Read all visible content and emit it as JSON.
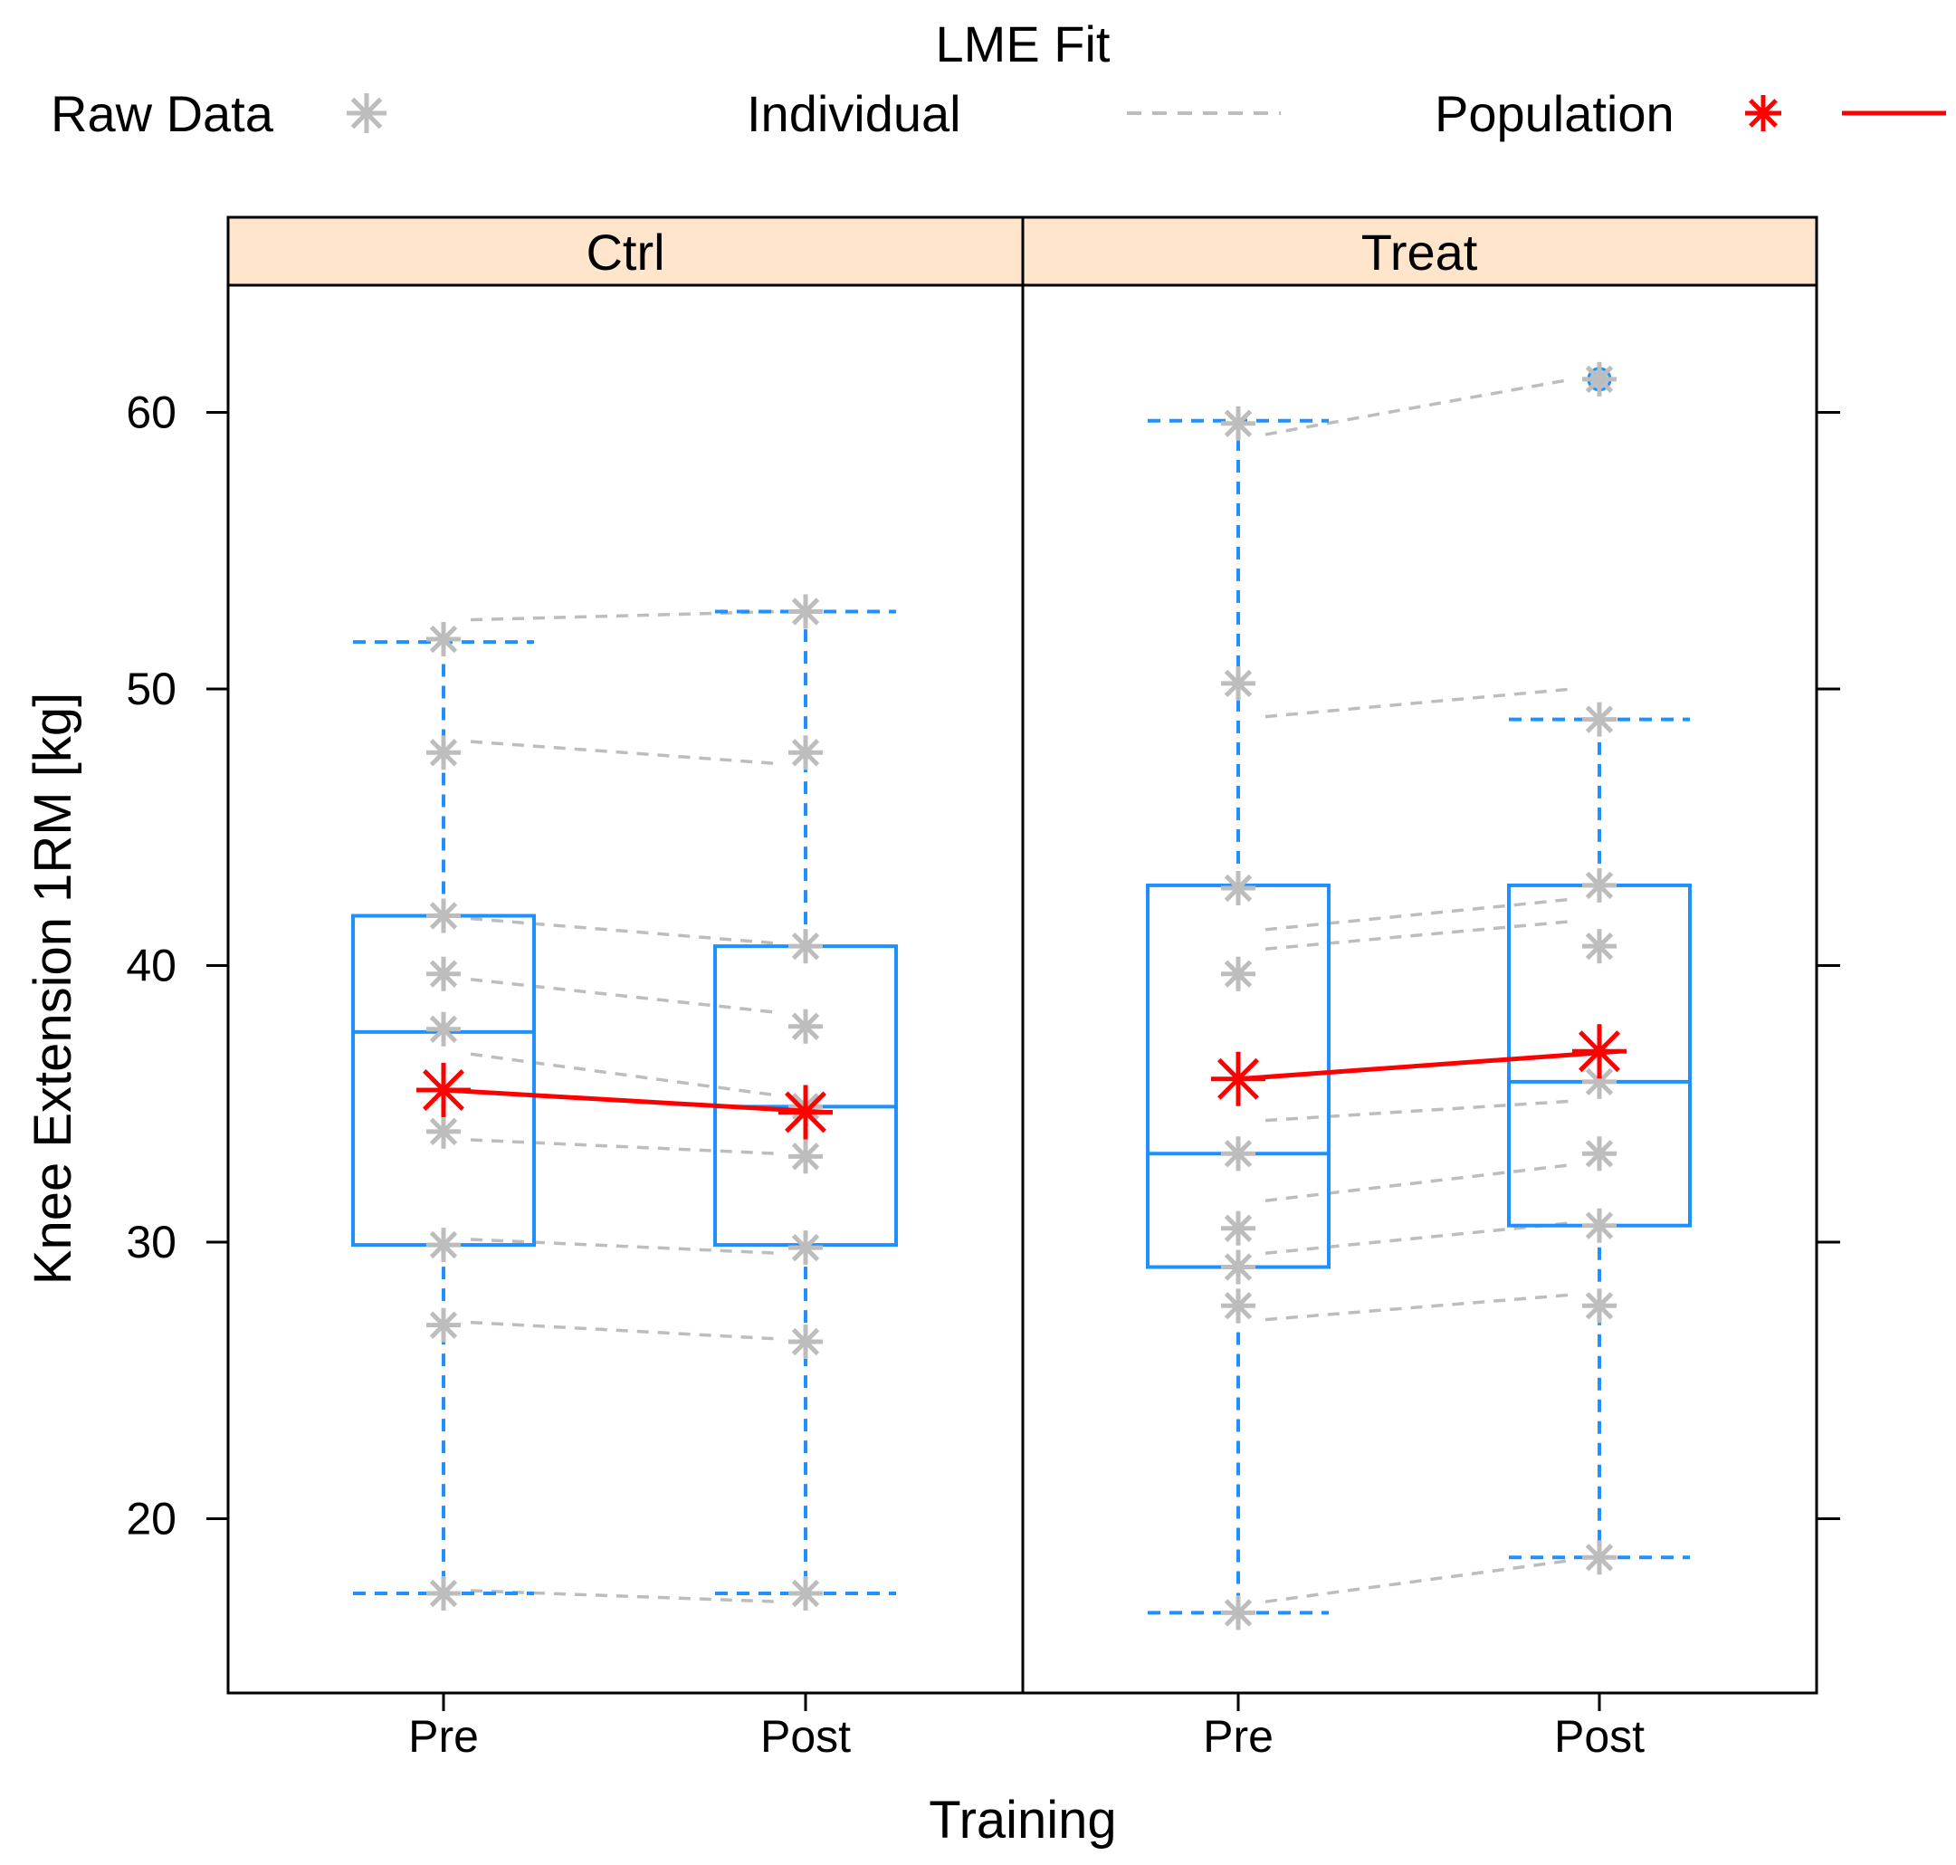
{
  "legend": {
    "title": "LME Fit",
    "raw_label": "Raw Data",
    "individual_label": "Individual",
    "population_label": "Population"
  },
  "colors": {
    "raw": "#bdbdbd",
    "individual": "#bdbdbd",
    "population": "#ff0000",
    "box": "#1e90ff",
    "strip": "#ffe5cc"
  },
  "chart_data": {
    "type": "box",
    "title": "",
    "xlabel": "Training",
    "ylabel": "Knee Extension 1RM [kg]",
    "ylim": [
      13.7,
      64.6
    ],
    "yticks": [
      20,
      30,
      40,
      50,
      60
    ],
    "categories": [
      "Pre",
      "Post"
    ],
    "panels": [
      {
        "name": "Ctrl",
        "boxes": [
          {
            "category": "Pre",
            "whisker_low": 17.3,
            "q1": 29.9,
            "median": 37.6,
            "q3": 41.8,
            "whisker_high": 51.7,
            "outliers": []
          },
          {
            "category": "Post",
            "whisker_low": 17.3,
            "q1": 29.9,
            "median": 34.9,
            "q3": 40.7,
            "whisker_high": 52.8,
            "outliers": []
          }
        ],
        "raw": {
          "Pre": [
            51.8,
            47.7,
            41.8,
            39.7,
            37.7,
            34.0,
            29.9,
            27.0,
            17.3
          ],
          "Post": [
            52.8,
            47.7,
            40.7,
            37.8,
            34.9,
            33.1,
            29.8,
            26.4,
            17.3
          ]
        },
        "individual_fits": [
          [
            52.5,
            52.8
          ],
          [
            48.1,
            47.3
          ],
          [
            41.7,
            40.8
          ],
          [
            39.5,
            38.3
          ],
          [
            36.8,
            35.3
          ],
          [
            33.7,
            33.2
          ],
          [
            30.1,
            29.6
          ],
          [
            27.1,
            26.5
          ],
          [
            17.4,
            17.0
          ]
        ],
        "population": [
          35.5,
          34.7
        ]
      },
      {
        "name": "Treat",
        "boxes": [
          {
            "category": "Pre",
            "whisker_low": 16.6,
            "q1": 29.1,
            "median": 33.2,
            "q3": 42.9,
            "whisker_high": 59.7,
            "outliers": []
          },
          {
            "category": "Post",
            "whisker_low": 18.6,
            "q1": 30.6,
            "median": 35.8,
            "q3": 42.9,
            "whisker_high": 48.9,
            "outliers": [
              61.2
            ]
          }
        ],
        "raw": {
          "Pre": [
            59.6,
            50.2,
            42.8,
            39.7,
            33.2,
            30.5,
            29.1,
            27.7,
            16.6
          ],
          "Post": [
            61.2,
            48.9,
            42.9,
            40.7,
            35.8,
            33.2,
            30.6,
            27.7,
            18.6
          ]
        },
        "individual_fits": [
          [
            59.2,
            61.2
          ],
          [
            49.0,
            50.0
          ],
          [
            41.3,
            42.4
          ],
          [
            40.6,
            41.6
          ],
          [
            34.4,
            35.1
          ],
          [
            31.5,
            32.8
          ],
          [
            29.6,
            30.7
          ],
          [
            27.2,
            28.1
          ],
          [
            17.0,
            18.5
          ]
        ],
        "population": [
          35.9,
          36.9
        ]
      }
    ]
  }
}
